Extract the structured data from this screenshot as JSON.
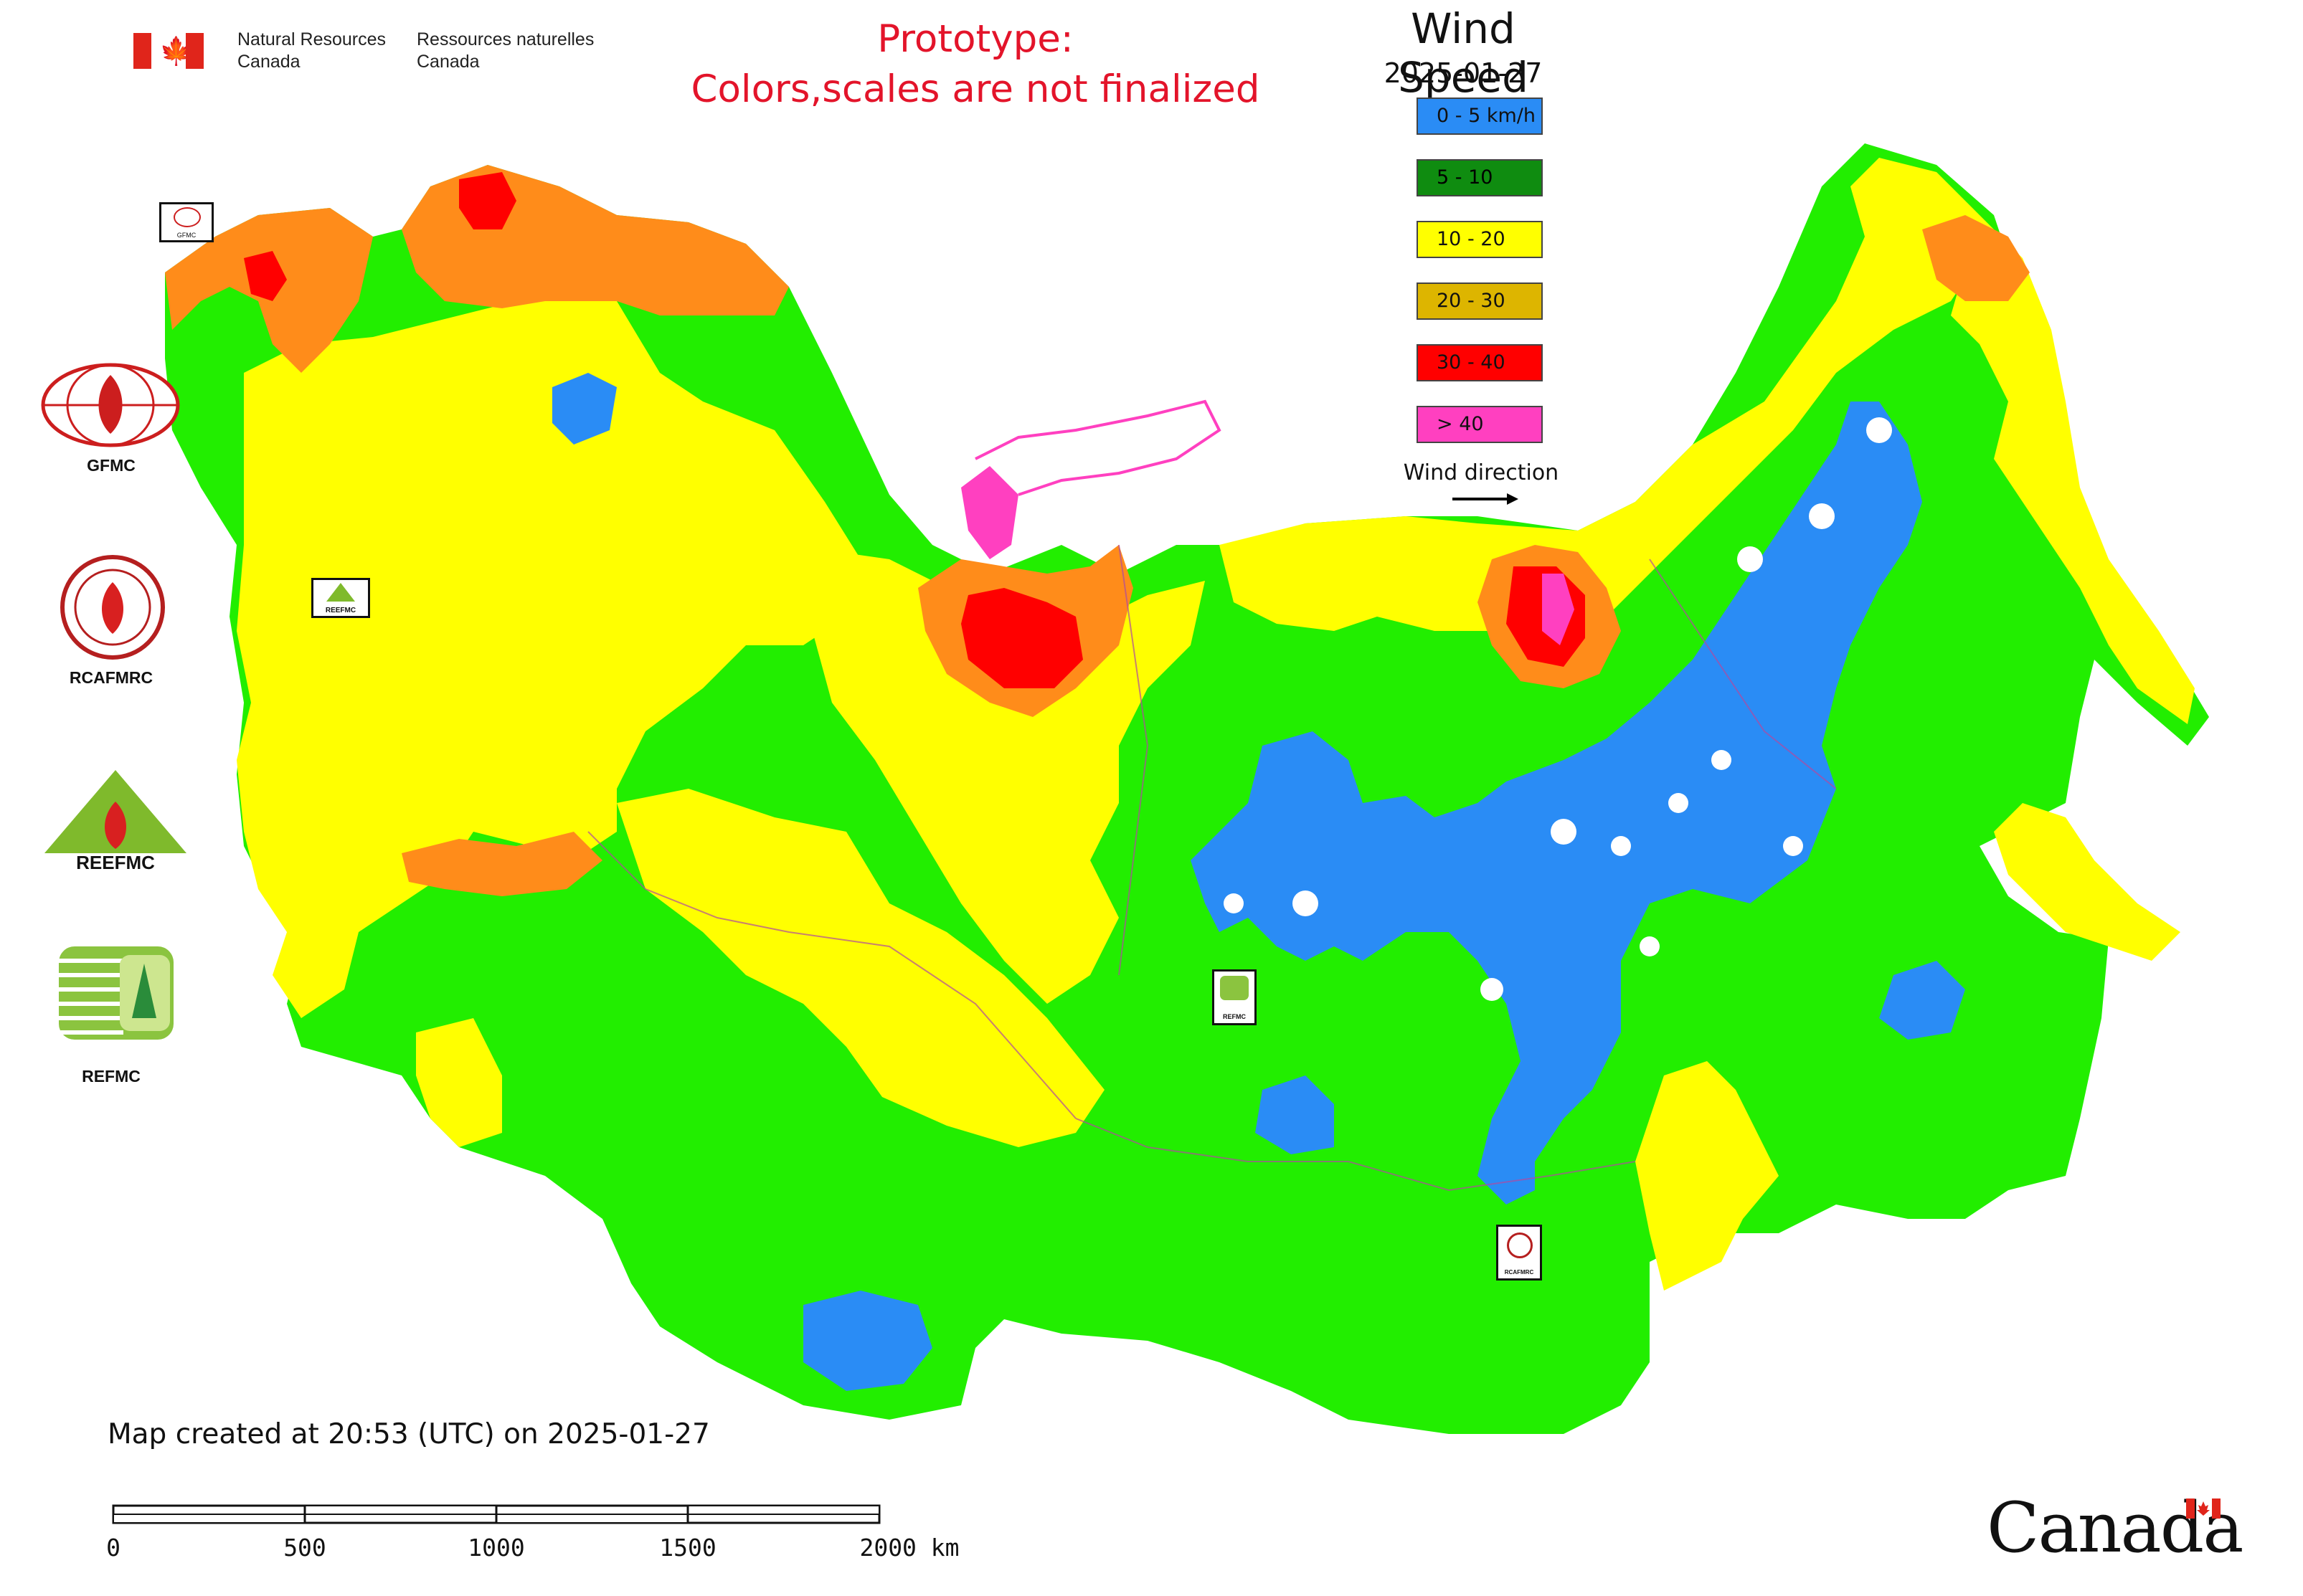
{
  "header": {
    "agency_en": [
      "Natural Resources",
      "Canada"
    ],
    "agency_fr": [
      "Ressources naturelles",
      "Canada"
    ]
  },
  "prototype_notice": [
    "Prototype:",
    "Colors,scales are not finalized"
  ],
  "map_title": "Wind Speed",
  "map_date": "2025-01-27",
  "legend": [
    {
      "label": "0 - 5 km/h",
      "color": "#2a8cf5"
    },
    {
      "label": "5 - 10",
      "color": "#0f8c10"
    },
    {
      "label": "10 - 20",
      "color": "#ffff00"
    },
    {
      "label": "20 - 30",
      "color": "#ddb500"
    },
    {
      "label": "30 - 40",
      "color": "#ff0000"
    },
    {
      "label": "> 40",
      "color": "#ff40c0"
    }
  ],
  "wind_direction_label": "Wind direction",
  "side_logos": [
    {
      "label": "GFMC",
      "icon": "gfmc-logo-icon"
    },
    {
      "label": "RCAFMRC",
      "icon": "rcafmrc-logo-icon"
    },
    {
      "label": "",
      "icon": "reefmc-logo-icon"
    },
    {
      "label": "REFMC",
      "icon": "refmc-logo-icon"
    }
  ],
  "map_markers": [
    {
      "label": "GFMC"
    },
    {
      "label": "REEFMC"
    },
    {
      "label": "REFMC"
    },
    {
      "label": "RCAFMRC"
    }
  ],
  "colors": {
    "light_green": "#22ee00",
    "blue": "#2a8cf5",
    "yellow": "#ffff00",
    "orange": "#ff8c1a",
    "red": "#ff0000",
    "magenta": "#ff40c0",
    "boundary": "#b04aa0"
  },
  "footer": {
    "created": "Map created at 20:53 (UTC) on 2025-01-27",
    "scale_ticks": [
      "0",
      "500",
      "1000",
      "1500",
      "2000 km"
    ],
    "wordmark": "Canada"
  }
}
